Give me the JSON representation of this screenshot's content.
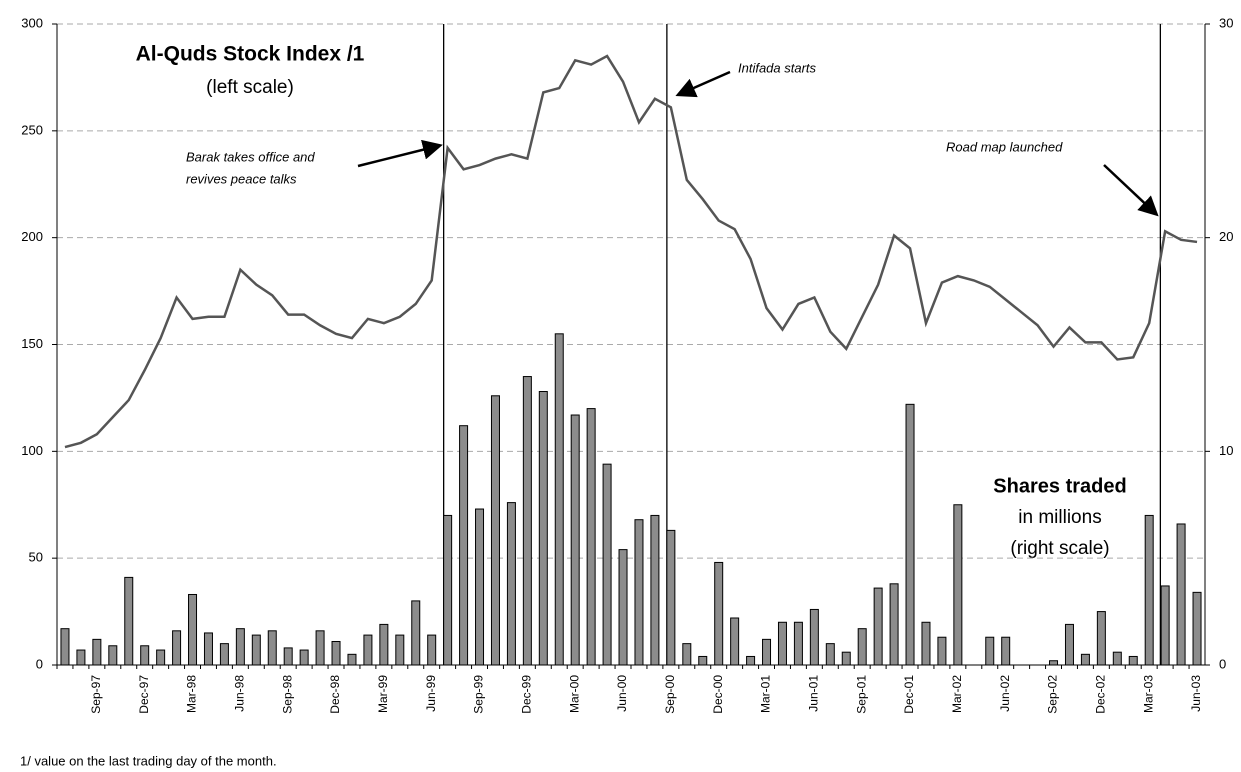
{
  "chart_data": {
    "type": "bar-line",
    "annotations": [
      "Al-Quds Stock Index /1",
      "(left scale)",
      "Barak takes office and",
      "revives peace talks",
      "Intifada starts",
      "Road map launched",
      "Shares traded",
      "in millions",
      "(right scale)"
    ],
    "footnote": "1/ value on the last trading day of the month.",
    "categories": [
      null,
      null,
      "Sep-97",
      null,
      null,
      "Dec-97",
      null,
      null,
      "Mar-98",
      null,
      null,
      "Jun-98",
      null,
      null,
      "Sep-98",
      null,
      null,
      "Dec-98",
      null,
      null,
      "Mar-99",
      null,
      null,
      "Jun-99",
      null,
      null,
      "Sep-99",
      null,
      null,
      "Dec-99",
      null,
      null,
      "Mar-00",
      null,
      null,
      "Jun-00",
      null,
      null,
      "Sep-00",
      null,
      null,
      "Dec-00",
      null,
      null,
      "Mar-01",
      null,
      null,
      "Jun-01",
      null,
      null,
      "Sep-01",
      null,
      null,
      "Dec-01",
      null,
      null,
      "Mar-02",
      null,
      null,
      "Jun-02",
      null,
      null,
      "Sep-02",
      null,
      null,
      "Dec-02",
      null,
      null,
      "Mar-03",
      null,
      null,
      "Jun-03"
    ],
    "series": [
      {
        "name": "Shares traded",
        "type": "bar",
        "axis": "y2",
        "color": "#8c8c8c",
        "values": [
          1.7,
          0.7,
          1.2,
          0.9,
          4.1,
          0.9,
          0.7,
          1.6,
          3.3,
          1.5,
          1.0,
          1.7,
          1.4,
          1.6,
          0.8,
          0.7,
          1.6,
          1.1,
          0.5,
          1.4,
          1.9,
          1.4,
          3.0,
          1.4,
          7.0,
          11.2,
          7.3,
          12.6,
          7.6,
          13.5,
          12.8,
          15.5,
          11.7,
          12.0,
          9.4,
          5.4,
          6.8,
          7.0,
          6.3,
          1.0,
          0.4,
          4.8,
          2.2,
          0.4,
          1.2,
          2.0,
          2.0,
          2.6,
          1.0,
          0.6,
          1.7,
          3.6,
          3.8,
          12.2,
          2.0,
          1.3,
          7.5,
          0,
          1.3,
          1.3,
          0,
          0,
          0.2,
          1.9,
          0.5,
          2.5,
          0.6,
          0.4,
          7.0,
          3.7,
          6.6,
          3.4
        ]
      },
      {
        "name": "Al-Quds Stock Index",
        "type": "line",
        "color": "#555555",
        "values": [
          102,
          104,
          108,
          116,
          124,
          138,
          153,
          172,
          162,
          163,
          163,
          185,
          178,
          173,
          164,
          164,
          159,
          155,
          153,
          162,
          160,
          163,
          169,
          180,
          242,
          232,
          234,
          237,
          239,
          237,
          268,
          270,
          283,
          281,
          285,
          273,
          254,
          265,
          261,
          227,
          218,
          208,
          204,
          190,
          167,
          157,
          169,
          172,
          156,
          148,
          163,
          178,
          201,
          195,
          160,
          179,
          182,
          180,
          177,
          171,
          165,
          159,
          149,
          158,
          151,
          151,
          143,
          144,
          160,
          203,
          199,
          198
        ]
      }
    ],
    "ylim": [
      0,
      300
    ],
    "yticks": [
      0,
      50,
      100,
      150,
      200,
      250,
      300
    ],
    "y2lim": [
      0,
      30
    ],
    "y2ticks": [
      0,
      10,
      20,
      30
    ],
    "grid": true
  }
}
